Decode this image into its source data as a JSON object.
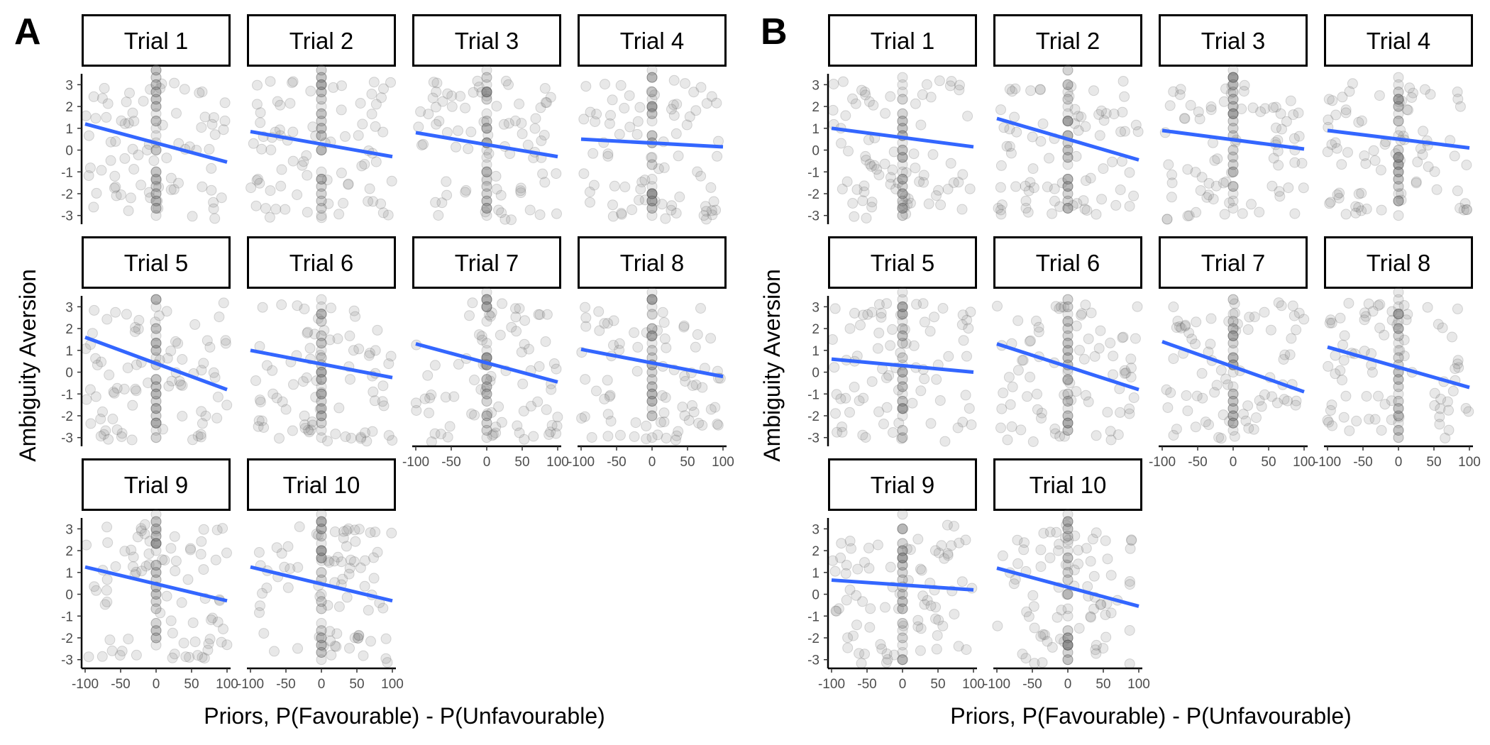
{
  "figure": {
    "x_axis_label": "Priors, P(Favourable) - P(Unfavourable)",
    "y_axis_label": "Ambiguity Aversion",
    "panel_labels": [
      "A",
      "B"
    ],
    "x_ticks": [
      "-100",
      "-50",
      "0",
      "50",
      "100"
    ],
    "y_ticks": [
      "3",
      "2",
      "1",
      "0",
      "-1",
      "-2",
      "-3"
    ]
  },
  "colors": {
    "fit_line": "#3366ff",
    "points": "#808080",
    "points_stroke": "#555555",
    "axis": "#000000"
  },
  "chart_data": [
    {
      "panel": "A",
      "type": "scatter",
      "facets": [
        "Trial 1",
        "Trial 2",
        "Trial 3",
        "Trial 4",
        "Trial 5",
        "Trial 6",
        "Trial 7",
        "Trial 8",
        "Trial 9",
        "Trial 10"
      ],
      "xlabel": "Priors, P(Favourable) - P(Unfavourable)",
      "ylabel": "Ambiguity Aversion",
      "xlim": [
        -105,
        105
      ],
      "ylim": [
        -3.4,
        3.5
      ],
      "x_ticks": [
        -100,
        -50,
        0,
        50,
        100
      ],
      "y_ticks": [
        -3,
        -2,
        -1,
        0,
        1,
        2,
        3
      ],
      "regression_lines": [
        {
          "facet": "Trial 1",
          "x": [
            -100,
            100
          ],
          "y": [
            1.2,
            -0.55
          ]
        },
        {
          "facet": "Trial 2",
          "x": [
            -100,
            100
          ],
          "y": [
            0.85,
            -0.3
          ]
        },
        {
          "facet": "Trial 3",
          "x": [
            -100,
            100
          ],
          "y": [
            0.8,
            -0.3
          ]
        },
        {
          "facet": "Trial 4",
          "x": [
            -100,
            100
          ],
          "y": [
            0.5,
            0.15
          ]
        },
        {
          "facet": "Trial 5",
          "x": [
            -100,
            100
          ],
          "y": [
            1.6,
            -0.8
          ]
        },
        {
          "facet": "Trial 6",
          "x": [
            -100,
            100
          ],
          "y": [
            1.0,
            -0.25
          ]
        },
        {
          "facet": "Trial 7",
          "x": [
            -100,
            100
          ],
          "y": [
            1.3,
            -0.45
          ]
        },
        {
          "facet": "Trial 8",
          "x": [
            -100,
            100
          ],
          "y": [
            1.05,
            -0.2
          ]
        },
        {
          "facet": "Trial 9",
          "x": [
            -100,
            100
          ],
          "y": [
            1.25,
            -0.3
          ]
        },
        {
          "facet": "Trial 10",
          "x": [
            -100,
            100
          ],
          "y": [
            1.25,
            -0.3
          ]
        }
      ]
    },
    {
      "panel": "B",
      "type": "scatter",
      "facets": [
        "Trial 1",
        "Trial 2",
        "Trial 3",
        "Trial 4",
        "Trial 5",
        "Trial 6",
        "Trial 7",
        "Trial 8",
        "Trial 9",
        "Trial 10"
      ],
      "xlabel": "Priors, P(Favourable) - P(Unfavourable)",
      "ylabel": "Ambiguity Aversion",
      "xlim": [
        -105,
        105
      ],
      "ylim": [
        -3.4,
        3.5
      ],
      "x_ticks": [
        -100,
        -50,
        0,
        50,
        100
      ],
      "y_ticks": [
        -3,
        -2,
        -1,
        0,
        1,
        2,
        3
      ],
      "regression_lines": [
        {
          "facet": "Trial 1",
          "x": [
            -100,
            100
          ],
          "y": [
            1.0,
            0.15
          ]
        },
        {
          "facet": "Trial 2",
          "x": [
            -100,
            100
          ],
          "y": [
            1.45,
            -0.45
          ]
        },
        {
          "facet": "Trial 3",
          "x": [
            -100,
            100
          ],
          "y": [
            0.9,
            0.05
          ]
        },
        {
          "facet": "Trial 4",
          "x": [
            -100,
            100
          ],
          "y": [
            0.9,
            0.1
          ]
        },
        {
          "facet": "Trial 5",
          "x": [
            -100,
            100
          ],
          "y": [
            0.6,
            0.0
          ]
        },
        {
          "facet": "Trial 6",
          "x": [
            -100,
            100
          ],
          "y": [
            1.3,
            -0.8
          ]
        },
        {
          "facet": "Trial 7",
          "x": [
            -100,
            100
          ],
          "y": [
            1.4,
            -0.9
          ]
        },
        {
          "facet": "Trial 8",
          "x": [
            -100,
            100
          ],
          "y": [
            1.15,
            -0.7
          ]
        },
        {
          "facet": "Trial 9",
          "x": [
            -100,
            100
          ],
          "y": [
            0.65,
            0.2
          ]
        },
        {
          "facet": "Trial 10",
          "x": [
            -100,
            100
          ],
          "y": [
            1.2,
            -0.55
          ]
        }
      ]
    }
  ]
}
